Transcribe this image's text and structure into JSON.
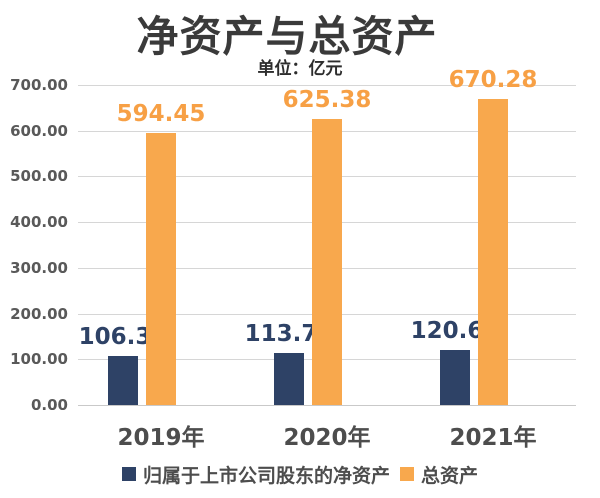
{
  "chart_data": {
    "type": "bar",
    "title": "净资产与总资产",
    "unit_label": "单位：亿元",
    "categories": [
      "2019年",
      "2020年",
      "2021年"
    ],
    "series": [
      {
        "name": "归属于上市公司股东的净资产",
        "color": "#2e4266",
        "label_color": "#2e4266",
        "values": [
          106.31,
          113.75,
          120.6
        ],
        "labels": [
          "106.31",
          "113.75",
          "120.60"
        ]
      },
      {
        "name": "总资产",
        "color": "#f8a84d",
        "label_color": "#f7a045",
        "values": [
          594.45,
          625.38,
          670.28
        ],
        "labels": [
          "594.45",
          "625.38",
          "670.28"
        ]
      }
    ],
    "ylim": [
      0,
      700
    ],
    "yticks": [
      {
        "value": 700,
        "label": "700.00"
      },
      {
        "value": 600,
        "label": "600.00"
      },
      {
        "value": 500,
        "label": "500.00"
      },
      {
        "value": 400,
        "label": "400.00"
      },
      {
        "value": 300,
        "label": "300.00"
      },
      {
        "value": 200,
        "label": "200.00"
      },
      {
        "value": 100,
        "label": "100.00"
      },
      {
        "value": 0,
        "label": "0.00"
      }
    ],
    "grid": "horizontal",
    "legend_position": "bottom",
    "colors": {
      "grid": "#d6d6d6",
      "baseline": "#c9c9c9",
      "axis_text": "#595959",
      "category_text": "#4d4d4d",
      "title_text": "#3a3a3a"
    }
  }
}
